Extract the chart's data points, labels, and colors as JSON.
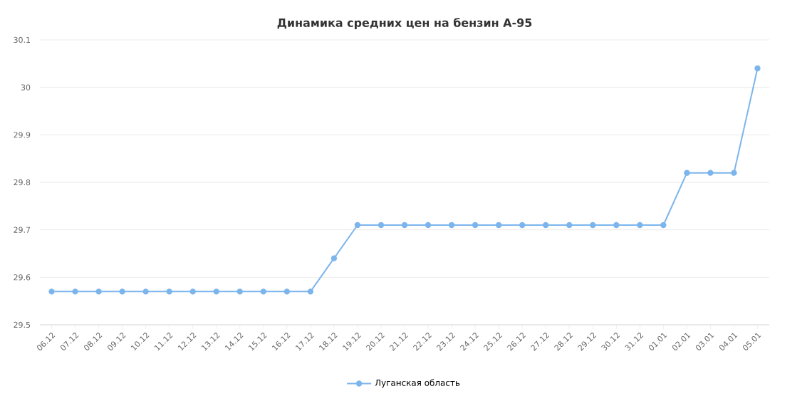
{
  "chart_data": {
    "type": "line",
    "title": "Динамика средних цен на бензин А-95",
    "categories": [
      "06.12",
      "07.12",
      "08.12",
      "09.12",
      "10.12",
      "11.12",
      "12.12",
      "13.12",
      "14.12",
      "15.12",
      "16.12",
      "17.12",
      "18.12",
      "19.12",
      "20.12",
      "21.12",
      "22.12",
      "23.12",
      "24.12",
      "25.12",
      "26.12",
      "27.12",
      "28.12",
      "29.12",
      "30.12",
      "31.12",
      "01.01",
      "02.01",
      "03.01",
      "04.01",
      "05.01"
    ],
    "series": [
      {
        "name": "Луганская область",
        "color": "#7cb5ec",
        "values": [
          29.57,
          29.57,
          29.57,
          29.57,
          29.57,
          29.57,
          29.57,
          29.57,
          29.57,
          29.57,
          29.57,
          29.57,
          29.64,
          29.71,
          29.71,
          29.71,
          29.71,
          29.71,
          29.71,
          29.71,
          29.71,
          29.71,
          29.71,
          29.71,
          29.71,
          29.71,
          29.71,
          29.82,
          29.82,
          29.82,
          30.04
        ]
      }
    ],
    "ylim": [
      29.5,
      30.1
    ],
    "yticks": [
      29.5,
      29.6,
      29.7,
      29.8,
      29.9,
      30,
      30.1
    ],
    "grid": "y",
    "legend": "bottom",
    "marker": "circle",
    "line_style": "solid"
  }
}
